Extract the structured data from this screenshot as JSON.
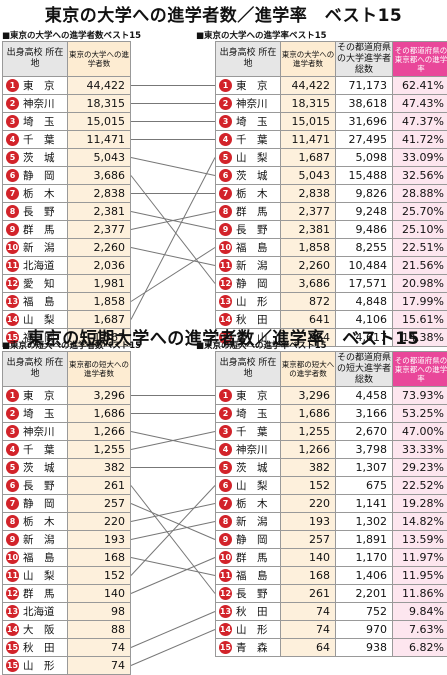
{
  "chart_data": [
    {
      "type": "table",
      "title": "東京の大学への進学者数／進学率　ベスト15",
      "left": {
        "subtitle": "■東京の大学への進学者数ベスト15",
        "col_pref": "出身高校 所在地",
        "col_value": "東京の大学への進学者数",
        "rows": [
          {
            "rank": "1",
            "pref": "東　京",
            "value": "44,422"
          },
          {
            "rank": "2",
            "pref": "神奈川",
            "value": "18,315"
          },
          {
            "rank": "3",
            "pref": "埼　玉",
            "value": "15,015"
          },
          {
            "rank": "4",
            "pref": "千　葉",
            "value": "11,471"
          },
          {
            "rank": "5",
            "pref": "茨　城",
            "value": "5,043"
          },
          {
            "rank": "6",
            "pref": "静　岡",
            "value": "3,686"
          },
          {
            "rank": "7",
            "pref": "栃　木",
            "value": "2,838"
          },
          {
            "rank": "8",
            "pref": "長　野",
            "value": "2,381"
          },
          {
            "rank": "9",
            "pref": "群　馬",
            "value": "2,377"
          },
          {
            "rank": "10",
            "pref": "新　潟",
            "value": "2,260"
          },
          {
            "rank": "11",
            "pref": "北海道",
            "value": "2,036"
          },
          {
            "rank": "12",
            "pref": "愛　知",
            "value": "1,981"
          },
          {
            "rank": "13",
            "pref": "福　島",
            "value": "1,858"
          },
          {
            "rank": "14",
            "pref": "山　梨",
            "value": "1,687"
          },
          {
            "rank": "15",
            "pref": "福　岡",
            "value": "1,567"
          }
        ]
      },
      "right": {
        "subtitle": "■東京の大学への進学率ベスト15",
        "col_pref": "出身高校 所在地",
        "col_a": "東京の大学への進学者数",
        "col_b": "その都道府県の大学進学者総数",
        "col_c": "その都道府県の東京都への進学率",
        "rows": [
          {
            "rank": "1",
            "pref": "東　京",
            "a": "44,422",
            "b": "71,173",
            "c": "62.41%"
          },
          {
            "rank": "2",
            "pref": "神奈川",
            "a": "18,315",
            "b": "38,618",
            "c": "47.43%"
          },
          {
            "rank": "3",
            "pref": "埼　玉",
            "a": "15,015",
            "b": "31,696",
            "c": "47.37%"
          },
          {
            "rank": "4",
            "pref": "千　葉",
            "a": "11,471",
            "b": "27,495",
            "c": "41.72%"
          },
          {
            "rank": "5",
            "pref": "山　梨",
            "a": "1,687",
            "b": "5,098",
            "c": "33.09%"
          },
          {
            "rank": "6",
            "pref": "茨　城",
            "a": "5,043",
            "b": "15,488",
            "c": "32.56%"
          },
          {
            "rank": "7",
            "pref": "栃　木",
            "a": "2,838",
            "b": "9,826",
            "c": "28.88%"
          },
          {
            "rank": "8",
            "pref": "群　馬",
            "a": "2,377",
            "b": "9,248",
            "c": "25.70%"
          },
          {
            "rank": "9",
            "pref": "長　野",
            "a": "2,381",
            "b": "9,486",
            "c": "25.10%"
          },
          {
            "rank": "10",
            "pref": "福　島",
            "a": "1,858",
            "b": "8,255",
            "c": "22.51%"
          },
          {
            "rank": "11",
            "pref": "新　潟",
            "a": "2,260",
            "b": "10,484",
            "c": "21.56%"
          },
          {
            "rank": "12",
            "pref": "静　岡",
            "a": "3,686",
            "b": "17,571",
            "c": "20.98%"
          },
          {
            "rank": "13",
            "pref": "山　形",
            "a": "872",
            "b": "4,848",
            "c": "17.99%"
          },
          {
            "rank": "14",
            "pref": "秋　田",
            "a": "641",
            "b": "4,106",
            "c": "15.61%"
          },
          {
            "rank": "15",
            "pref": "富　山",
            "a": "664",
            "b": "4,617",
            "c": "14.38%"
          }
        ]
      }
    },
    {
      "type": "table",
      "title": "東京の短期大学への進学者数／進学率　ベスト15",
      "left": {
        "subtitle": "■東京の短大への進学者数ベスト15",
        "col_pref": "出身高校 所在地",
        "col_value": "東京都の短大への進学者数",
        "rows": [
          {
            "rank": "1",
            "pref": "東　京",
            "value": "3,296"
          },
          {
            "rank": "2",
            "pref": "埼　玉",
            "value": "1,686"
          },
          {
            "rank": "3",
            "pref": "神奈川",
            "value": "1,266"
          },
          {
            "rank": "4",
            "pref": "千　葉",
            "value": "1,255"
          },
          {
            "rank": "5",
            "pref": "茨　城",
            "value": "382"
          },
          {
            "rank": "6",
            "pref": "長　野",
            "value": "261"
          },
          {
            "rank": "7",
            "pref": "静　岡",
            "value": "257"
          },
          {
            "rank": "8",
            "pref": "栃　木",
            "value": "220"
          },
          {
            "rank": "9",
            "pref": "新　潟",
            "value": "193"
          },
          {
            "rank": "10",
            "pref": "福　島",
            "value": "168"
          },
          {
            "rank": "11",
            "pref": "山　梨",
            "value": "152"
          },
          {
            "rank": "12",
            "pref": "群　馬",
            "value": "140"
          },
          {
            "rank": "13",
            "pref": "北海道",
            "value": "98"
          },
          {
            "rank": "14",
            "pref": "大　阪",
            "value": "88"
          },
          {
            "rank": "15",
            "pref": "秋　田",
            "value": "74"
          },
          {
            "rank": "15",
            "pref": "山　形",
            "value": "74"
          }
        ]
      },
      "right": {
        "subtitle": "■東京の短大への進学率ベスト15",
        "col_pref": "出身高校 所在地",
        "col_a": "東京都の短大への進学者数",
        "col_b": "その都道府県の短大進学者総数",
        "col_c": "その都道府県の東京都への進学率",
        "rows": [
          {
            "rank": "1",
            "pref": "東　京",
            "a": "3,296",
            "b": "4,458",
            "c": "73.93%"
          },
          {
            "rank": "2",
            "pref": "埼　玉",
            "a": "1,686",
            "b": "3,166",
            "c": "53.25%"
          },
          {
            "rank": "3",
            "pref": "千　葉",
            "a": "1,255",
            "b": "2,670",
            "c": "47.00%"
          },
          {
            "rank": "4",
            "pref": "神奈川",
            "a": "1,266",
            "b": "3,798",
            "c": "33.33%"
          },
          {
            "rank": "5",
            "pref": "茨　城",
            "a": "382",
            "b": "1,307",
            "c": "29.23%"
          },
          {
            "rank": "6",
            "pref": "山　梨",
            "a": "152",
            "b": "675",
            "c": "22.52%"
          },
          {
            "rank": "7",
            "pref": "栃　木",
            "a": "220",
            "b": "1,141",
            "c": "19.28%"
          },
          {
            "rank": "8",
            "pref": "新　潟",
            "a": "193",
            "b": "1,302",
            "c": "14.82%"
          },
          {
            "rank": "9",
            "pref": "静　岡",
            "a": "257",
            "b": "1,891",
            "c": "13.59%"
          },
          {
            "rank": "10",
            "pref": "群　馬",
            "a": "140",
            "b": "1,170",
            "c": "11.97%"
          },
          {
            "rank": "11",
            "pref": "福　島",
            "a": "168",
            "b": "1,406",
            "c": "11.95%"
          },
          {
            "rank": "12",
            "pref": "長　野",
            "a": "261",
            "b": "2,201",
            "c": "11.86%"
          },
          {
            "rank": "13",
            "pref": "秋　田",
            "a": "74",
            "b": "752",
            "c": "9.84%"
          },
          {
            "rank": "14",
            "pref": "山　形",
            "a": "74",
            "b": "970",
            "c": "7.63%"
          },
          {
            "rank": "15",
            "pref": "青　森",
            "a": "64",
            "b": "938",
            "c": "6.82%"
          }
        ]
      }
    }
  ],
  "colors": {
    "rank_badge": "#d2232a",
    "value_bg": "#fdf0dc",
    "rate_header": "#e9479a",
    "rate_bg": "#fde6ef",
    "line": "#777777"
  }
}
